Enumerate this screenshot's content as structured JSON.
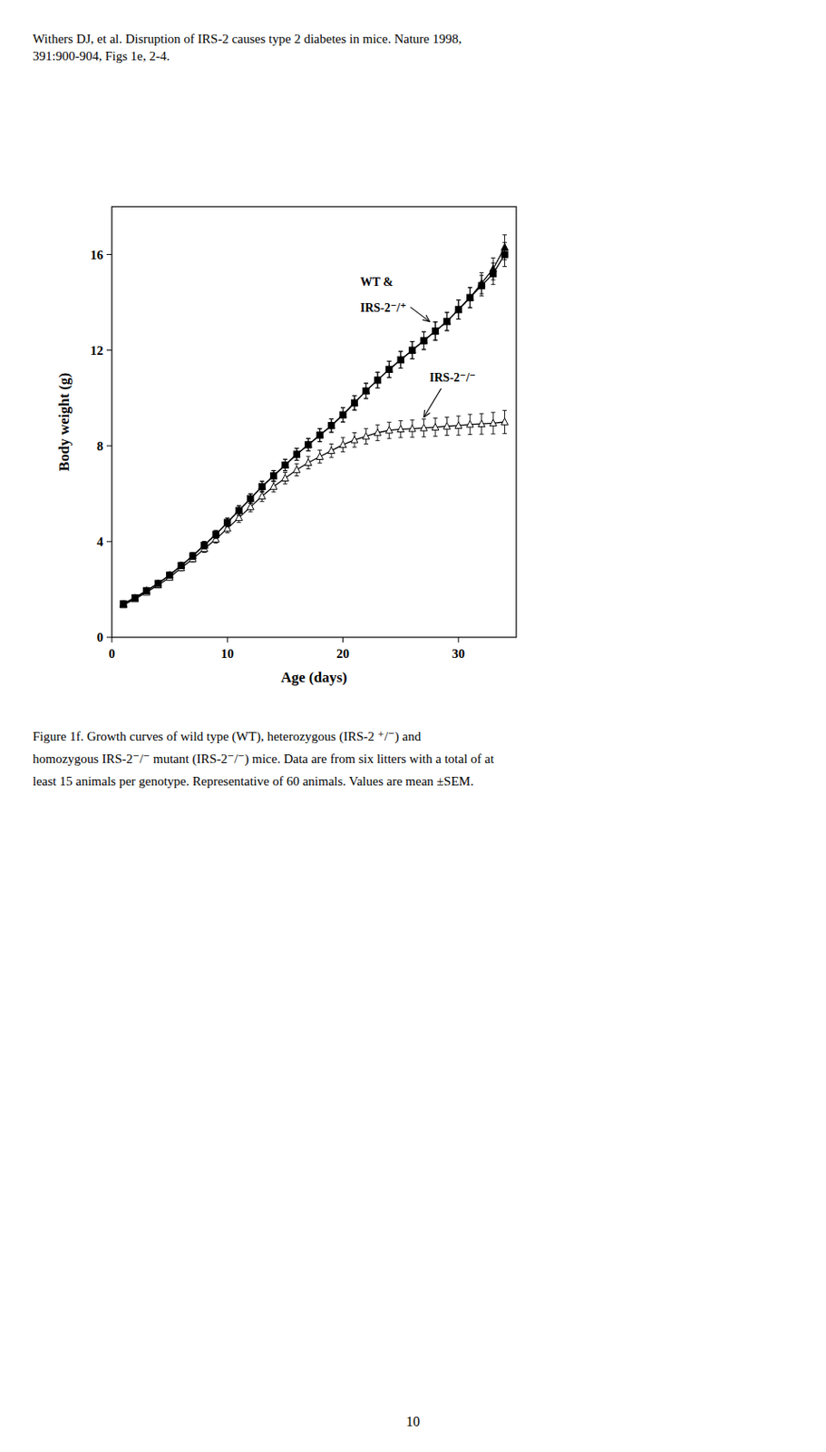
{
  "chart_data": {
    "type": "line",
    "title": "Withers DJ, et al. Disruption of IRS-2 causes type 2 diabetes in mice. Nature 1998,\n391:900-904, Figs 1e, 2-4.",
    "x_label": "Age (days)",
    "y_label": "Body weight (g)",
    "xlim": [
      0,
      35
    ],
    "ylim": [
      0,
      18
    ],
    "xticks": [
      0,
      10,
      20,
      30
    ],
    "yticks": [
      0,
      4,
      8,
      12,
      16
    ],
    "grid": false,
    "x": [
      1,
      2,
      3,
      4,
      5,
      6,
      7,
      8,
      9,
      10,
      11,
      12,
      13,
      14,
      15,
      16,
      17,
      18,
      19,
      20,
      21,
      22,
      23,
      24,
      25,
      26,
      27,
      28,
      29,
      30,
      31,
      32,
      33,
      34
    ],
    "series": [
      {
        "color": "#000000",
        "marker": "square",
        "line_style": "solid",
        "values": [
          1.4,
          1.65,
          1.95,
          2.25,
          2.6,
          3.0,
          3.4,
          3.85,
          4.3,
          4.8,
          5.3,
          5.8,
          6.3,
          6.75,
          7.2,
          7.65,
          8.05,
          8.45,
          8.85,
          9.3,
          9.8,
          10.3,
          10.75,
          11.2,
          11.6,
          12.0,
          12.4,
          12.8,
          13.2,
          13.7,
          14.2,
          14.7,
          15.2,
          16.0
        ],
        "errors": [
          0.08,
          0.08,
          0.09,
          0.1,
          0.1,
          0.12,
          0.14,
          0.15,
          0.16,
          0.18,
          0.2,
          0.2,
          0.22,
          0.22,
          0.24,
          0.25,
          0.26,
          0.27,
          0.28,
          0.3,
          0.3,
          0.32,
          0.33,
          0.34,
          0.35,
          0.36,
          0.37,
          0.38,
          0.38,
          0.4,
          0.42,
          0.43,
          0.45,
          0.5
        ]
      },
      {
        "color": "#000000",
        "marker": "triangle",
        "line_style": "solid",
        "values": [
          1.4,
          1.65,
          1.95,
          2.25,
          2.6,
          3.0,
          3.4,
          3.85,
          4.3,
          4.8,
          5.3,
          5.8,
          6.3,
          6.75,
          7.2,
          7.65,
          8.05,
          8.45,
          8.85,
          9.3,
          9.8,
          10.3,
          10.75,
          11.2,
          11.6,
          12.0,
          12.4,
          12.8,
          13.2,
          13.7,
          14.2,
          14.8,
          15.4,
          16.3
        ],
        "errors": [
          0.08,
          0.08,
          0.09,
          0.1,
          0.1,
          0.12,
          0.14,
          0.15,
          0.16,
          0.18,
          0.2,
          0.2,
          0.22,
          0.22,
          0.24,
          0.25,
          0.26,
          0.27,
          0.28,
          0.3,
          0.3,
          0.32,
          0.33,
          0.34,
          0.35,
          0.36,
          0.37,
          0.38,
          0.38,
          0.4,
          0.42,
          0.44,
          0.46,
          0.52
        ]
      },
      {
        "color": "#000000",
        "marker": "open-triangle",
        "line_style": "solid",
        "values": [
          1.35,
          1.6,
          1.88,
          2.18,
          2.5,
          2.9,
          3.28,
          3.7,
          4.1,
          4.55,
          5.0,
          5.45,
          5.9,
          6.3,
          6.65,
          7.0,
          7.3,
          7.55,
          7.8,
          8.05,
          8.25,
          8.4,
          8.55,
          8.65,
          8.7,
          8.72,
          8.75,
          8.78,
          8.82,
          8.85,
          8.9,
          8.92,
          8.95,
          9.0
        ],
        "errors": [
          0.08,
          0.08,
          0.09,
          0.1,
          0.1,
          0.12,
          0.14,
          0.15,
          0.16,
          0.18,
          0.2,
          0.2,
          0.22,
          0.22,
          0.24,
          0.25,
          0.26,
          0.27,
          0.28,
          0.3,
          0.3,
          0.32,
          0.33,
          0.34,
          0.35,
          0.36,
          0.37,
          0.38,
          0.38,
          0.4,
          0.42,
          0.43,
          0.45,
          0.48
        ]
      }
    ],
    "annotations": [
      {
        "text": "WT &"
      },
      {
        "text": "IRS-2⁻/⁺"
      },
      {
        "text": "IRS-2⁻/⁻"
      },
      {
        "text": "Figure 1f. Growth curves of wild type (WT), heterozygous (IRS-2 ⁺/⁻) and"
      },
      {
        "text": "homozygous IRS-2⁻/⁻ mutant (IRS-2⁻/⁻) mice. Data are from six litters with a total of at"
      },
      {
        "text": "least 15 animals per genotype. Representative of 60 animals. Values are mean ±SEM."
      },
      {
        "text": "10"
      }
    ]
  }
}
